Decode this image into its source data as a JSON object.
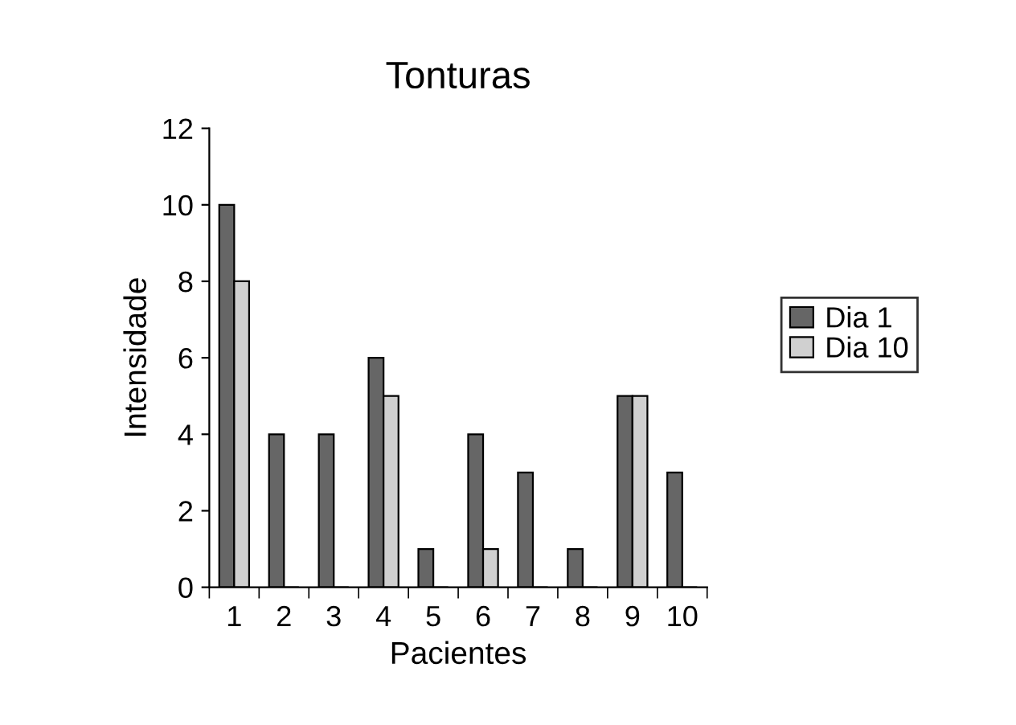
{
  "chart_data": {
    "type": "bar",
    "title": "Tonturas",
    "xlabel": "Pacientes",
    "ylabel": "Intensidade",
    "categories": [
      "1",
      "2",
      "3",
      "4",
      "5",
      "6",
      "7",
      "8",
      "9",
      "10"
    ],
    "series": [
      {
        "name": "Dia 1",
        "color": "#666666",
        "values": [
          10,
          4,
          4,
          6,
          1,
          4,
          3,
          1,
          5,
          3
        ]
      },
      {
        "name": "Dia 10",
        "color": "#d0d0d0",
        "values": [
          8,
          0,
          0,
          5,
          0,
          1,
          0,
          0,
          5,
          0
        ]
      }
    ],
    "ylim": [
      0,
      12
    ],
    "yticks": [
      0,
      2,
      4,
      6,
      8,
      10,
      12
    ],
    "grid": false,
    "legend": "right"
  }
}
